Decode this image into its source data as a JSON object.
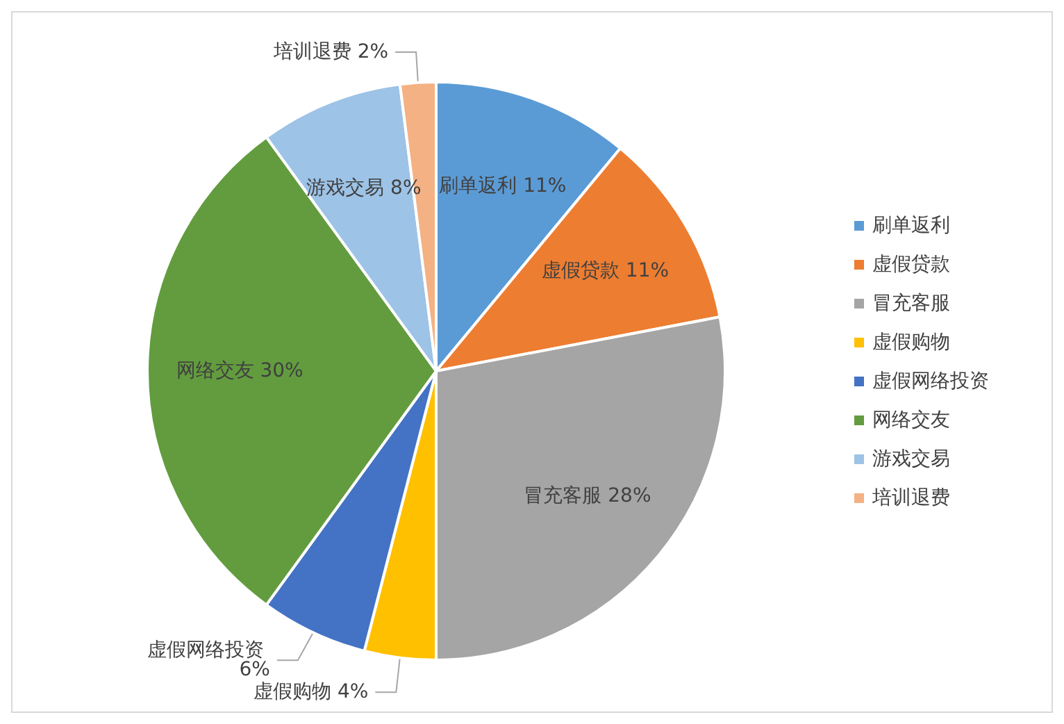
{
  "chart_data": {
    "type": "pie",
    "categories": [
      "刷单返利",
      "虚假贷款",
      "冒充客服",
      "虚假购物",
      "虚假网络投资",
      "网络交友",
      "游戏交易",
      "培训退费"
    ],
    "values": [
      11,
      11,
      28,
      4,
      6,
      30,
      8,
      2
    ],
    "value_labels": [
      "刷单返利 11%",
      "虚假贷款 11%",
      "冒充客服 28%",
      "虚假购物 4%",
      "虚假网络投资 6%",
      "网络交友 30%",
      "游戏交易 8%",
      "培训退费 2%"
    ],
    "colors": [
      "#5b9bd5",
      "#ed7d31",
      "#a5a5a5",
      "#ffc000",
      "#4472c4",
      "#629c3e",
      "#9dc3e6",
      "#f4b183"
    ],
    "legend": "right"
  }
}
